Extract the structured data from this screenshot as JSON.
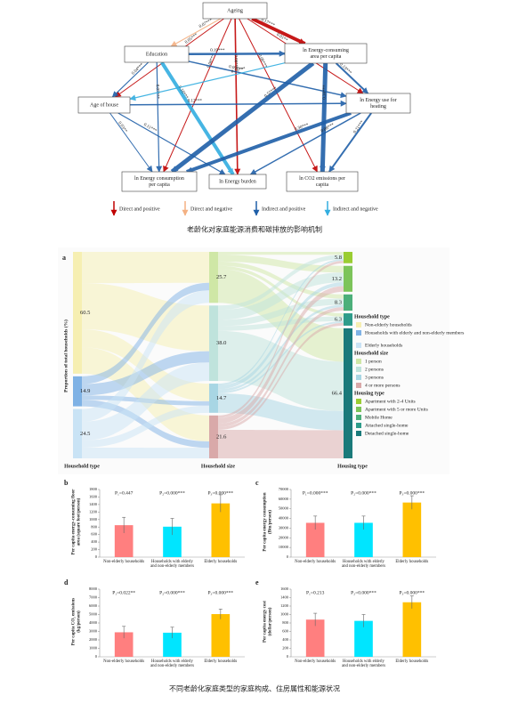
{
  "diagram": {
    "nodes": [
      {
        "lines": [
          "Ageing"
        ]
      },
      {
        "lines": [
          "Education"
        ]
      },
      {
        "lines": [
          "ln Energy-consuming",
          "area per capita"
        ]
      },
      {
        "lines": [
          "Age of house"
        ]
      },
      {
        "lines": [
          "ln Energy use for",
          "heating"
        ]
      },
      {
        "lines": [
          "ln Energy  consumption",
          "per capita"
        ]
      },
      {
        "lines": [
          "ln Energy  burden"
        ]
      },
      {
        "lines": [
          "ln CO2 emissions per",
          "capita"
        ]
      }
    ],
    "edges": [
      {
        "from": 0,
        "to": 3,
        "label": "0.05***",
        "kind": 0
      },
      {
        "from": 0,
        "to": 4,
        "label": "0.01**",
        "kind": 0
      },
      {
        "from": 0,
        "to": 1,
        "label": "0.07***",
        "kind": 1
      },
      {
        "from": 0,
        "to": 2,
        "label": "0.17***",
        "kind": 0
      },
      {
        "from": 0,
        "to": 5,
        "label": "0.08***",
        "kind": 0
      },
      {
        "from": 0,
        "to": 6,
        "label": "0.08***",
        "kind": 0
      },
      {
        "from": 0,
        "to": 7,
        "label": "0.06***",
        "kind": 0
      },
      {
        "from": 1,
        "to": 2,
        "label": "0.19***",
        "kind": 2
      },
      {
        "from": 1,
        "to": 6,
        "label": "0.16***",
        "kind": 3
      },
      {
        "from": 1,
        "to": 4,
        "label": "0.09***",
        "kind": 2
      },
      {
        "from": 1,
        "to": 3,
        "label": "0.04***",
        "kind": 2
      },
      {
        "from": 1,
        "to": 5,
        "label": "0.07***",
        "kind": 2
      },
      {
        "from": 2,
        "to": 5,
        "label": "0.57***",
        "kind": 2
      },
      {
        "from": 2,
        "to": 7,
        "label": "0.38***",
        "kind": 2
      },
      {
        "from": 2,
        "to": 4,
        "label": "0.19***",
        "kind": 2
      },
      {
        "from": 2,
        "to": 3,
        "label": "0.16***",
        "kind": 3
      },
      {
        "from": 3,
        "to": 4,
        "label": "0.12***",
        "kind": 2
      },
      {
        "from": 3,
        "to": 6,
        "label": "0.11***",
        "kind": 2
      },
      {
        "from": 3,
        "to": 5,
        "label": "0.03**",
        "kind": 2
      },
      {
        "from": 4,
        "to": 5,
        "label": "0.30***",
        "kind": 2
      },
      {
        "from": 4,
        "to": 6,
        "label": "0.08***",
        "kind": 2
      },
      {
        "from": 4,
        "to": 7,
        "label": "0.21***",
        "kind": 2
      }
    ],
    "legend": [
      {
        "label": "Direct and positive",
        "color": "#c00000"
      },
      {
        "label": "Direct and negative",
        "color": "#f4b183"
      },
      {
        "label": "Indirect and positive",
        "color": "#1f5fa8"
      },
      {
        "label": "Indirect and negative",
        "color": "#33aee0"
      }
    ],
    "caption": "老龄化对家庭能源消费和碳排放的影响机制"
  },
  "chart_data": [
    {
      "type": "sankey",
      "label": "a",
      "y_label": "Proportion of total households (%)",
      "columns": [
        {
          "title": "Household type",
          "legend_title": "Household type",
          "labels": [
            "Non-elderly households",
            "Households with elderly and non-elderly members",
            "Elderly households"
          ],
          "values": [
            60.5,
            14.9,
            24.5
          ],
          "colors": [
            "#f6efb2",
            "#7fb2e5",
            "#c9e3f5"
          ]
        },
        {
          "title": "Household size",
          "legend_title": "Household size",
          "labels": [
            "1 person",
            "2 persons",
            "3 persons",
            "4 or more persons"
          ],
          "values": [
            25.7,
            38,
            14.7,
            21.6
          ],
          "value_labels": [
            "25.7",
            "38.0",
            "14.7",
            "21.6"
          ],
          "colors": [
            "#cfe7a6",
            "#bfe3dc",
            "#a8d6e4",
            "#d9a9a9"
          ]
        },
        {
          "title": "Housing type",
          "legend_title": "Housing type",
          "labels": [
            "Apartment with 2-4 Units",
            "Apartment with 5 or more Units",
            "Mobile Home",
            "Attached single-home",
            "Detached single-home"
          ],
          "values": [
            5.8,
            13.2,
            8.3,
            6.3,
            66.4
          ],
          "colors": [
            "#9acd32",
            "#7cc45a",
            "#4caf7a",
            "#2e9c8a",
            "#1a7a7a"
          ]
        }
      ]
    },
    {
      "type": "bar",
      "label": "b",
      "y_label": "Per capita energy-consuming floor area (square foot/person)",
      "categories": [
        "Non-elderly households",
        "Households with elderly and non-elderly members",
        "Elderly households"
      ],
      "values": [
        850,
        810,
        1430
      ],
      "errors": [
        210,
        220,
        230
      ],
      "colors": [
        "#ff7f7f",
        "#00e5ff",
        "#ffc000"
      ],
      "ylim": [
        0,
        1800
      ],
      "yticks": [
        0,
        200,
        400,
        600,
        800,
        1000,
        1200,
        1400,
        1600,
        1800
      ],
      "p_values": [
        "P₁=0.447",
        "P₂=0.000***",
        "P₃=0.000***"
      ]
    },
    {
      "type": "bar",
      "label": "c",
      "y_label": "Per capita energy consumption (Btu/person)",
      "categories": [
        "Non-elderly households",
        "Households with elderly and non-elderly members",
        "Elderly households"
      ],
      "values": [
        35500,
        35500,
        56500
      ],
      "errors": [
        7000,
        7000,
        7000
      ],
      "colors": [
        "#ff7f7f",
        "#00e5ff",
        "#ffc000"
      ],
      "ylim": [
        0,
        70000
      ],
      "yticks": [
        0,
        10000,
        20000,
        30000,
        40000,
        50000,
        60000,
        70000
      ],
      "p_values": [
        "P₁=0.000***",
        "P₂=0.000***",
        "P₃=0.000***"
      ]
    },
    {
      "type": "bar",
      "label": "d",
      "y_label": "Per capita CO₂ emissions (kg/person)",
      "categories": [
        "Non-elderly households",
        "Households with elderly and non-elderly members",
        "Elderly households"
      ],
      "values": [
        2900,
        2850,
        5050
      ],
      "errors": [
        700,
        650,
        600
      ],
      "colors": [
        "#ff7f7f",
        "#00e5ff",
        "#ffc000"
      ],
      "ylim": [
        0,
        8000
      ],
      "yticks": [
        0,
        1000,
        2000,
        3000,
        4000,
        5000,
        6000,
        7000,
        8000
      ],
      "p_values": [
        "P₁=0.022**",
        "P₂=0.000***",
        "P₃=0.000***"
      ]
    },
    {
      "type": "bar",
      "label": "e",
      "y_label": "Per capita energy cost (dollar/person)",
      "categories": [
        "Non-elderly households",
        "Households with elderly and non-elderly members",
        "Elderly households"
      ],
      "values": [
        880,
        850,
        1290
      ],
      "errors": [
        150,
        150,
        150
      ],
      "colors": [
        "#ff7f7f",
        "#00e5ff",
        "#ffc000"
      ],
      "ylim": [
        0,
        1600
      ],
      "yticks": [
        0,
        200,
        400,
        600,
        800,
        1000,
        1200,
        1400,
        1600
      ],
      "p_values": [
        "P₁=0.213",
        "P₂=0.000***",
        "P₃=0.000***"
      ]
    }
  ],
  "figure_caption": "不同老龄化家庭类型的家庭构成、住房属性和能源状况"
}
